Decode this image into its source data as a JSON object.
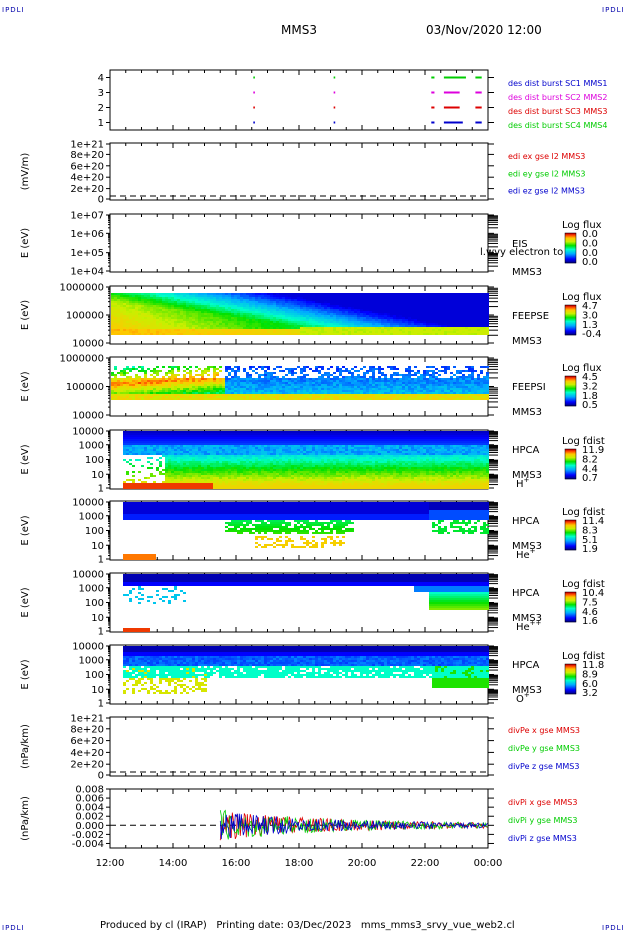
{
  "corner_tl": "IPDLI",
  "corner_tr": "IPDLI",
  "corner_bl": "IPDLI",
  "corner_br": "IPDLI",
  "header": {
    "spacecraft": "MMS3",
    "datetime": "03/Nov/2020 12:00"
  },
  "footer": {
    "produced": "Produced by cl (IRAP)",
    "printing": "Printing date: 03/Dec/2023",
    "file": "mms_mms3_srvy_vue_web2.cl"
  },
  "colors": {
    "red": "#dd0000",
    "magenta": "#dd00dd",
    "green": "#00cc00",
    "blue": "#0000cc",
    "dark_blue": "#000080"
  },
  "chart_data": [
    {
      "type": "scatter",
      "name": "burst",
      "ylim": [
        0.5,
        4.5
      ],
      "yticks": [
        "1",
        "2",
        "3",
        "4"
      ],
      "legend": [
        {
          "text": "des dist burst SC1 MMS1",
          "color": "#0000cc"
        },
        {
          "text": "des dist burst SC2 MMS2",
          "color": "#dd00dd"
        },
        {
          "text": "des dist burst SC3 MMS3",
          "color": "#dd0000"
        },
        {
          "text": "des dist burst SC4 MMS4",
          "color": "#00cc00"
        }
      ],
      "segments": [
        {
          "sc": 4,
          "x0": 16.55,
          "x1": 16.6
        },
        {
          "sc": 4,
          "x0": 19.1,
          "x1": 19.15
        },
        {
          "sc": 4,
          "x0": 22.2,
          "x1": 22.3
        },
        {
          "sc": 4,
          "x0": 22.6,
          "x1": 23.3
        },
        {
          "sc": 4,
          "x0": 23.6,
          "x1": 23.8
        },
        {
          "sc": 3,
          "x0": 16.55,
          "x1": 16.6
        },
        {
          "sc": 3,
          "x0": 19.1,
          "x1": 19.15
        },
        {
          "sc": 3,
          "x0": 22.2,
          "x1": 22.3
        },
        {
          "sc": 3,
          "x0": 22.6,
          "x1": 23.1
        },
        {
          "sc": 3,
          "x0": 23.6,
          "x1": 23.8
        },
        {
          "sc": 2,
          "x0": 16.55,
          "x1": 16.6
        },
        {
          "sc": 2,
          "x0": 19.1,
          "x1": 19.15
        },
        {
          "sc": 2,
          "x0": 22.2,
          "x1": 22.3
        },
        {
          "sc": 2,
          "x0": 22.6,
          "x1": 23.1
        },
        {
          "sc": 2,
          "x0": 23.6,
          "x1": 23.8
        },
        {
          "sc": 1,
          "x0": 16.55,
          "x1": 16.6
        },
        {
          "sc": 1,
          "x0": 19.1,
          "x1": 19.15
        },
        {
          "sc": 1,
          "x0": 22.2,
          "x1": 22.3
        },
        {
          "sc": 1,
          "x0": 22.6,
          "x1": 23.2
        },
        {
          "sc": 1,
          "x0": 23.6,
          "x1": 23.8
        }
      ]
    },
    {
      "type": "line",
      "name": "edi",
      "ylabel": "(mV/m)",
      "yticks": [
        "1e+21",
        "8e+20",
        "6e+20",
        "4e+20",
        "2e+20",
        "0"
      ],
      "zero_line": true,
      "legend": [
        {
          "text": "edi ex gse l2 MMS3",
          "color": "#dd0000"
        },
        {
          "text": "edi ey gse l2 MMS3",
          "color": "#00cc00"
        },
        {
          "text": "edi ez gse l2 MMS3",
          "color": "#0000cc"
        }
      ]
    },
    {
      "type": "heatmap",
      "name": "eis",
      "ylabel": "E (eV)",
      "yticks": [
        "1e+07",
        "1e+06",
        "1e+05",
        "1e+04"
      ],
      "labels": [
        "EIS",
        "MMS3"
      ],
      "overlay_text": "l.wvy electron to",
      "colorbar": {
        "title": "Log flux",
        "ticks": [
          "0.0",
          "0.0",
          "0.0",
          "0.0"
        ]
      }
    },
    {
      "type": "heatmap",
      "name": "feepse",
      "ylabel": "E (eV)",
      "yticks": [
        "1000000",
        "100000",
        "10000"
      ],
      "labels": [
        "FEEPSE",
        "MMS3"
      ],
      "colorbar": {
        "title": "Log flux",
        "ticks": [
          "4.7",
          "3.0",
          "1.3",
          "-0.4"
        ]
      }
    },
    {
      "type": "heatmap",
      "name": "feepsi",
      "ylabel": "E (eV)",
      "yticks": [
        "1000000",
        "100000",
        "10000"
      ],
      "labels": [
        "FEEPSI",
        "MMS3"
      ],
      "colorbar": {
        "title": "Log flux",
        "ticks": [
          "4.5",
          "3.2",
          "1.8",
          "0.5"
        ]
      }
    },
    {
      "type": "heatmap",
      "name": "hpca_h",
      "ylabel": "E (eV)",
      "yticks": [
        "10000",
        "1000",
        "100",
        "10",
        "1"
      ],
      "labels": [
        "HPCA",
        "MMS3"
      ],
      "species": "H",
      "species_sup": "+",
      "colorbar": {
        "title": "Log fdist",
        "ticks": [
          "11.9",
          "8.2",
          "4.4",
          "0.7"
        ]
      }
    },
    {
      "type": "heatmap",
      "name": "hpca_he1",
      "ylabel": "E (eV)",
      "yticks": [
        "10000",
        "1000",
        "100",
        "10",
        "1"
      ],
      "labels": [
        "HPCA",
        "MMS3"
      ],
      "species": "He",
      "species_sup": "+",
      "colorbar": {
        "title": "Log fdist",
        "ticks": [
          "11.4",
          "8.3",
          "5.1",
          "1.9"
        ]
      }
    },
    {
      "type": "heatmap",
      "name": "hpca_he2",
      "ylabel": "E (eV)",
      "yticks": [
        "10000",
        "1000",
        "100",
        "10",
        "1"
      ],
      "labels": [
        "HPCA",
        "MMS3"
      ],
      "species": "He",
      "species_sup": "++",
      "colorbar": {
        "title": "Log fdist",
        "ticks": [
          "10.4",
          "7.5",
          "4.6",
          "1.6"
        ]
      }
    },
    {
      "type": "heatmap",
      "name": "hpca_o",
      "ylabel": "E (eV)",
      "yticks": [
        "10000",
        "1000",
        "100",
        "10",
        "1"
      ],
      "labels": [
        "HPCA",
        "MMS3"
      ],
      "species": "O",
      "species_sup": "+",
      "colorbar": {
        "title": "Log fdist",
        "ticks": [
          "11.8",
          "8.9",
          "6.0",
          "3.2"
        ]
      }
    },
    {
      "type": "line",
      "name": "divpe",
      "ylabel": "(nPa/km)",
      "yticks": [
        "1e+21",
        "8e+20",
        "6e+20",
        "4e+20",
        "2e+20",
        "0"
      ],
      "zero_line": true,
      "legend": [
        {
          "text": "divPe x gse MMS3",
          "color": "#dd0000"
        },
        {
          "text": "divPe y gse MMS3",
          "color": "#00cc00"
        },
        {
          "text": "divPe z gse MMS3",
          "color": "#0000cc"
        }
      ]
    },
    {
      "type": "line",
      "name": "divpi",
      "ylabel": "(nPa/km)",
      "ylim": [
        -0.005,
        0.008
      ],
      "yticks": [
        "0.008",
        "0.006",
        "0.004",
        "0.002",
        "0.000",
        "-0.002",
        "-0.004"
      ],
      "zero_line": true,
      "data_start": 15.5,
      "legend": [
        {
          "text": "divPi x gse MMS3",
          "color": "#dd0000"
        },
        {
          "text": "divPi y gse MMS3",
          "color": "#00cc00"
        },
        {
          "text": "divPi z gse MMS3",
          "color": "#0000cc"
        }
      ],
      "xaxis": {
        "range": [
          12,
          24
        ],
        "ticks": [
          "12:00",
          "14:00",
          "16:00",
          "18:00",
          "20:00",
          "22:00",
          "00:00"
        ]
      }
    }
  ]
}
